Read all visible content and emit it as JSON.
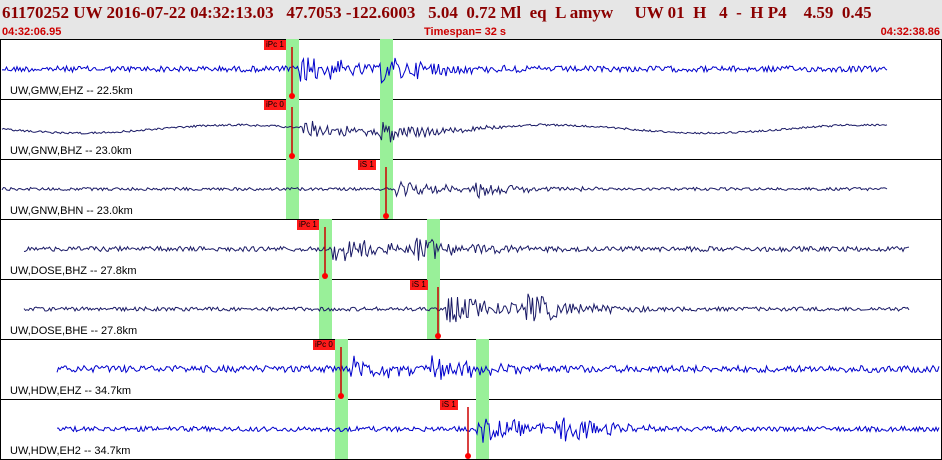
{
  "header": {
    "event_line": "61170252 UW 2016-07-22 04:32:13.03   47.7053 -122.6003   5.04  0.72 Ml  eq  L amyw     UW 01  H   4  -  H P4    4.59  0.45",
    "start_time": "04:32:06.95",
    "timespan": "Timespan=  32 s",
    "end_time": "04:32:38.86"
  },
  "panels": [
    {
      "label": "UW,GMW,EHZ -- 22.5km",
      "trace_color": "#0000cc",
      "amp": 6,
      "burst": 0.55,
      "picks": [
        {
          "label": "iPc 1",
          "pos": 0.31
        }
      ],
      "shade": [
        0.31,
        0.41
      ]
    },
    {
      "label": "UW,GNW,BHZ -- 23.0km",
      "trace_color": "#1a1a66",
      "amp": 8,
      "burst": 0.4,
      "picks": [
        {
          "label": "iPc 0",
          "pos": 0.31
        }
      ],
      "shade": [
        0.31,
        0.41
      ]
    },
    {
      "label": "UW,GNW,BHN -- 23.0km",
      "trace_color": "#1a1a66",
      "amp": 3,
      "burst": 0.3,
      "picks": [
        {
          "label": "iS 1",
          "pos": 0.41
        }
      ],
      "shade": [
        0.31,
        0.41
      ]
    },
    {
      "label": "UW,DOSE,BHZ -- 27.8km",
      "trace_color": "#1a1a66",
      "amp": 5,
      "burst": 0.5,
      "picks": [
        {
          "label": "iPc 1",
          "pos": 0.345
        }
      ],
      "shade": [
        0.345,
        0.46
      ]
    },
    {
      "label": "UW,DOSE,BHE -- 27.8km",
      "trace_color": "#1a1a66",
      "amp": 4,
      "burst": 0.55,
      "picks": [
        {
          "label": "iS 1",
          "pos": 0.465
        }
      ],
      "shade": [
        0.345,
        0.46
      ]
    },
    {
      "label": "UW,HDW,EHZ -- 34.7km",
      "trace_color": "#0000cc",
      "amp": 7,
      "burst": 0.45,
      "picks": [
        {
          "label": "iPc 0",
          "pos": 0.362
        }
      ],
      "shade": [
        0.362,
        0.512
      ]
    },
    {
      "label": "UW,HDW,EH2 -- 34.7km",
      "trace_color": "#0000cc",
      "amp": 5,
      "burst": 0.5,
      "picks": [
        {
          "label": "iS 1",
          "pos": 0.497
        }
      ],
      "shade": [
        0.362,
        0.512
      ]
    }
  ]
}
